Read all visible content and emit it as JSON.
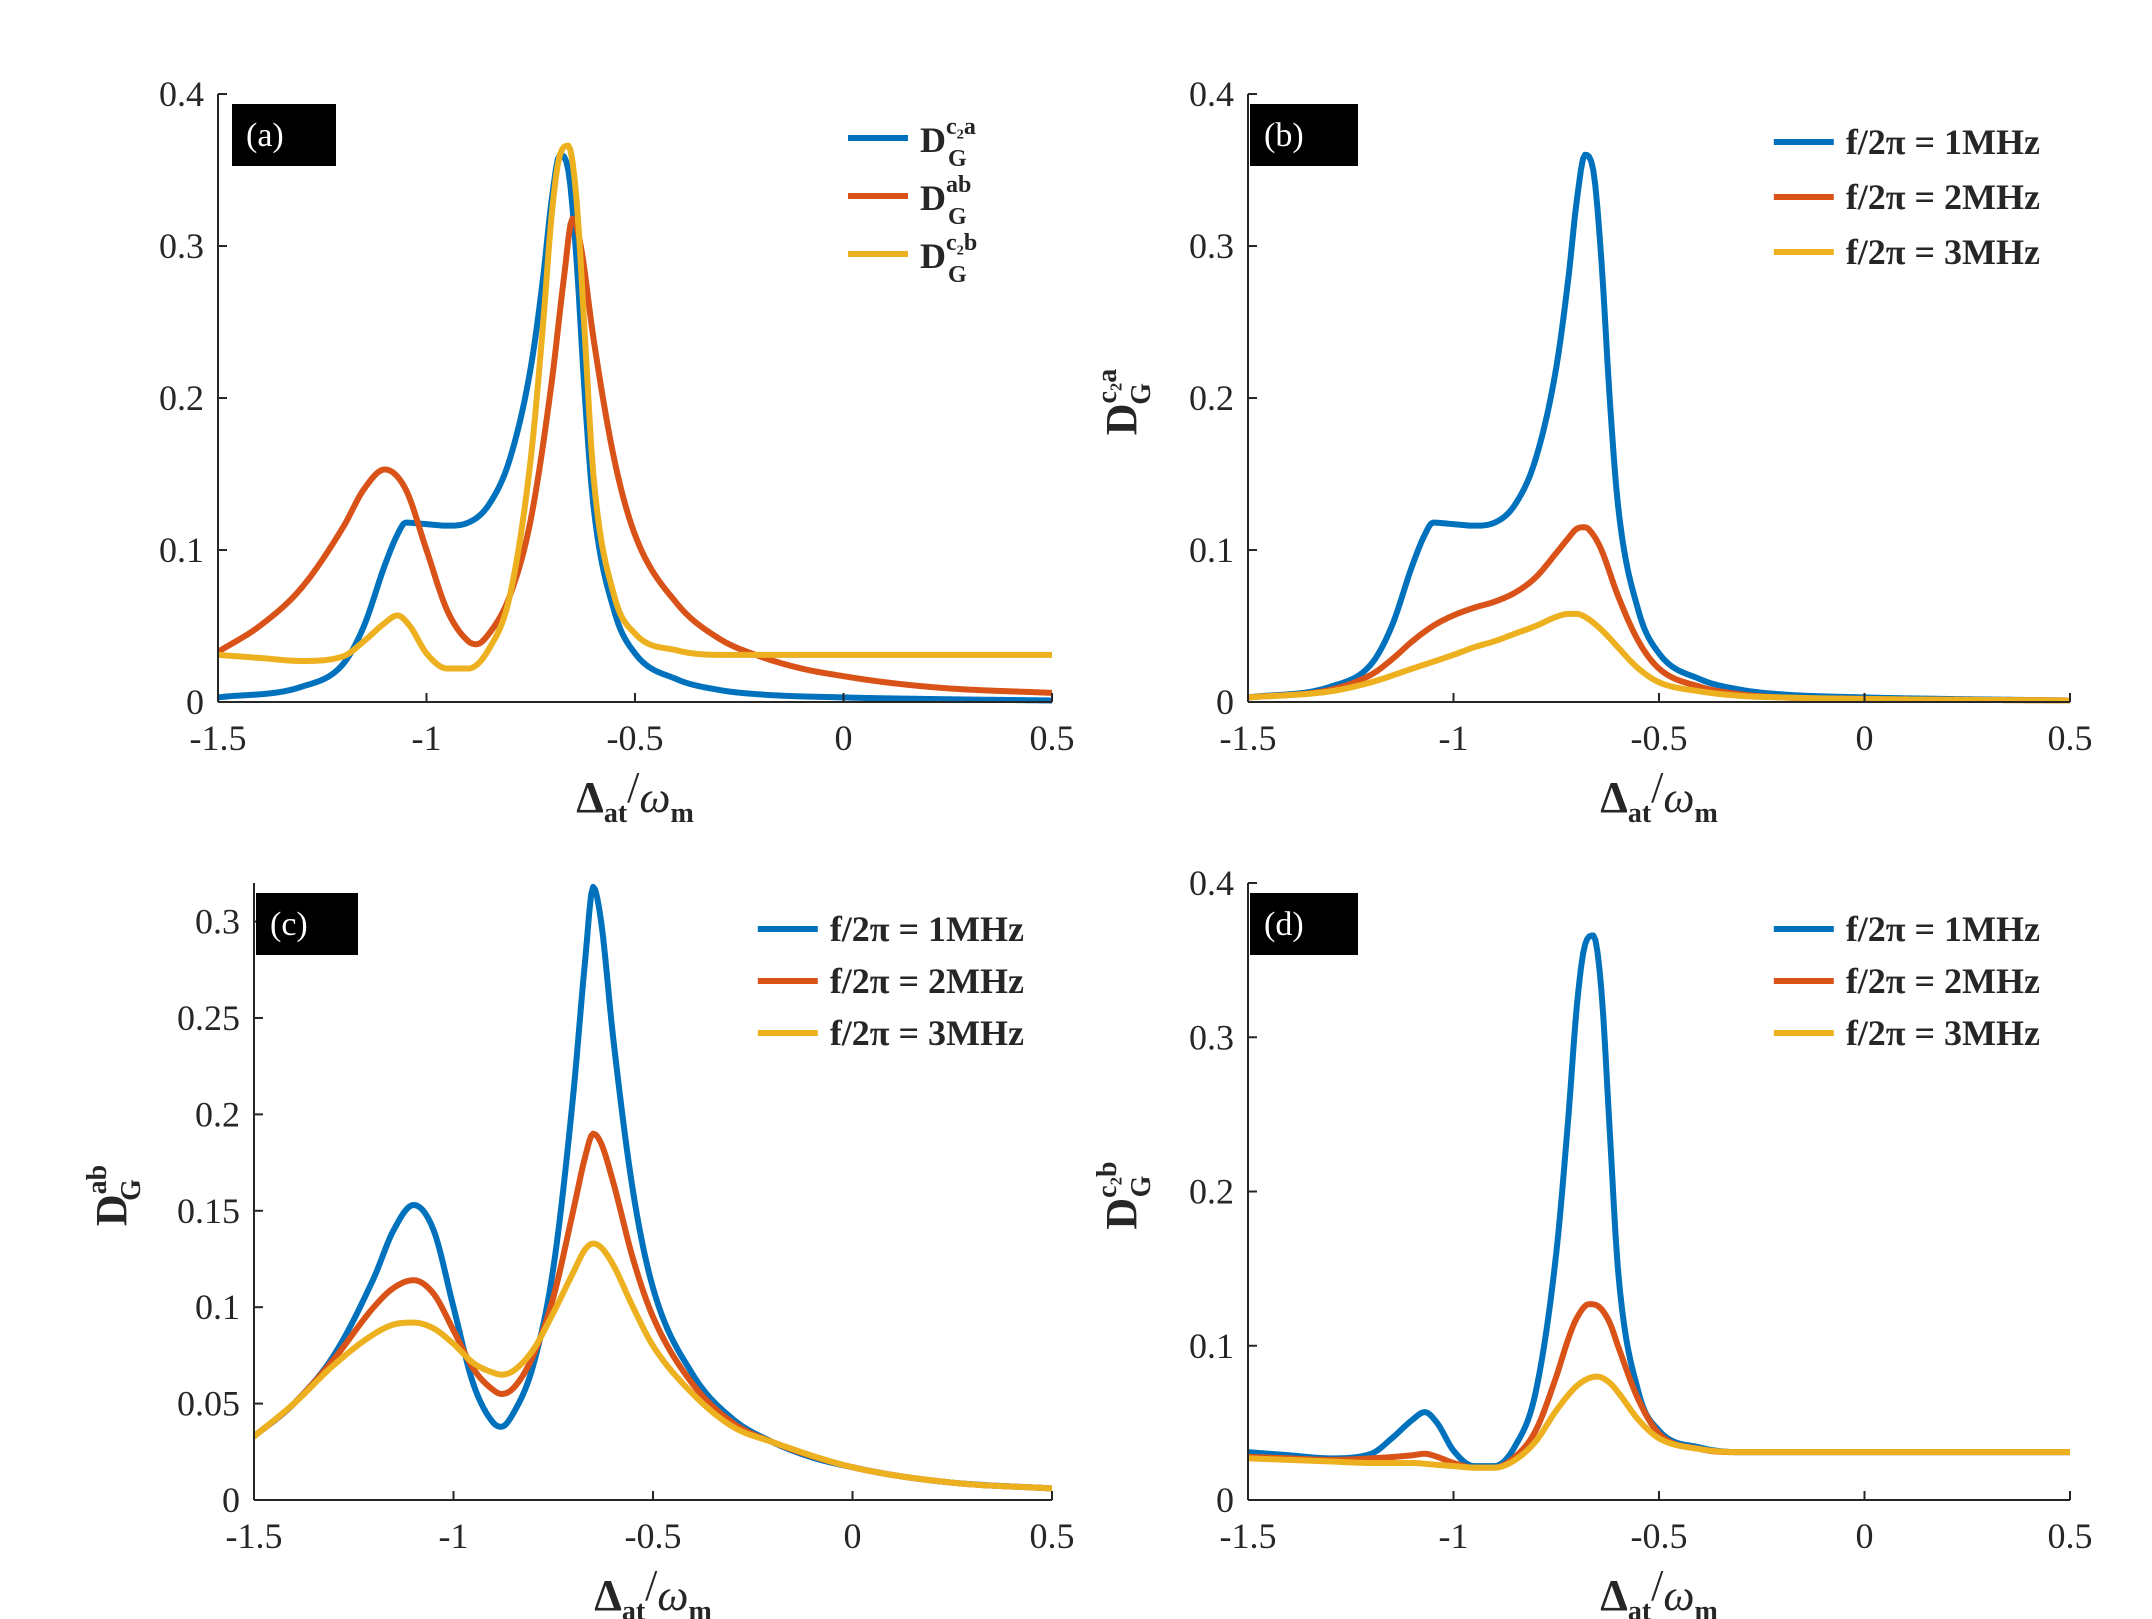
{
  "colors": {
    "blue": "#0072BD",
    "orange": "#D95319",
    "yellow": "#EDB120"
  },
  "chart_data": [
    {
      "panel": "(a)",
      "type": "line",
      "xlabel": {
        "main": "Δ",
        "sub": "at",
        "slash": "/",
        "omega": "ω",
        "omega_sub": "m"
      },
      "ylabel": null,
      "xlim": [
        -1.5,
        0.5
      ],
      "ylim": [
        0,
        0.4
      ],
      "xticks": [
        -1.5,
        -1,
        -0.5,
        0,
        0.5
      ],
      "xtick_labels": [
        "-1.5",
        "-1",
        "-0.5",
        "0",
        "0.5"
      ],
      "yticks": [
        0,
        0.1,
        0.2,
        0.3,
        0.4
      ],
      "ytick_labels": [
        "0",
        "0.1",
        "0.2",
        "0.3",
        "0.4"
      ],
      "legend_position": "top-right",
      "series": [
        {
          "name": "D_G^{c2a}",
          "legend": {
            "main": "D",
            "sub": "G",
            "sup": "c₂a"
          },
          "color": "#0072BD",
          "x": [
            -1.5,
            -1.3,
            -1.2,
            -1.15,
            -1.1,
            -1.07,
            -1.05,
            -1.0,
            -0.95,
            -0.9,
            -0.85,
            -0.8,
            -0.75,
            -0.72,
            -0.7,
            -0.68,
            -0.66,
            -0.64,
            -0.62,
            -0.6,
            -0.55,
            -0.5,
            -0.4,
            -0.3,
            -0.2,
            0,
            0.2,
            0.5
          ],
          "y": [
            0.003,
            0.01,
            0.025,
            0.05,
            0.09,
            0.11,
            0.118,
            0.117,
            0.116,
            0.118,
            0.13,
            0.16,
            0.22,
            0.28,
            0.33,
            0.36,
            0.35,
            0.29,
            0.2,
            0.13,
            0.06,
            0.032,
            0.015,
            0.008,
            0.005,
            0.003,
            0.002,
            0.001
          ]
        },
        {
          "name": "D_G^{ab}",
          "legend": {
            "main": "D",
            "sub": "G",
            "sup": "ab"
          },
          "color": "#D95319",
          "x": [
            -1.5,
            -1.4,
            -1.3,
            -1.2,
            -1.15,
            -1.1,
            -1.05,
            -1.0,
            -0.95,
            -0.9,
            -0.88,
            -0.85,
            -0.8,
            -0.75,
            -0.7,
            -0.67,
            -0.65,
            -0.63,
            -0.6,
            -0.55,
            -0.5,
            -0.4,
            -0.3,
            -0.2,
            -0.1,
            0,
            0.1,
            0.25,
            0.5
          ],
          "y": [
            0.033,
            0.05,
            0.075,
            0.115,
            0.14,
            0.153,
            0.14,
            0.1,
            0.06,
            0.04,
            0.038,
            0.045,
            0.07,
            0.12,
            0.21,
            0.28,
            0.318,
            0.3,
            0.24,
            0.16,
            0.11,
            0.065,
            0.042,
            0.03,
            0.022,
            0.017,
            0.013,
            0.009,
            0.006
          ]
        },
        {
          "name": "D_G^{c2b}",
          "legend": {
            "main": "D",
            "sub": "G",
            "sup": "c₂b"
          },
          "color": "#EDB120",
          "x": [
            -1.5,
            -1.4,
            -1.3,
            -1.2,
            -1.15,
            -1.1,
            -1.07,
            -1.04,
            -1.0,
            -0.95,
            -0.9,
            -0.85,
            -0.8,
            -0.75,
            -0.72,
            -0.7,
            -0.68,
            -0.66,
            -0.64,
            -0.62,
            -0.6,
            -0.55,
            -0.5,
            -0.4,
            -0.3,
            0,
            0.5
          ],
          "y": [
            0.031,
            0.029,
            0.027,
            0.03,
            0.04,
            0.052,
            0.057,
            0.05,
            0.032,
            0.022,
            0.022,
            0.035,
            0.07,
            0.16,
            0.25,
            0.32,
            0.36,
            0.366,
            0.33,
            0.24,
            0.15,
            0.07,
            0.045,
            0.034,
            0.031,
            0.031,
            0.031
          ]
        }
      ]
    },
    {
      "panel": "(b)",
      "type": "line",
      "xlabel": {
        "main": "Δ",
        "sub": "at",
        "slash": "/",
        "omega": "ω",
        "omega_sub": "m"
      },
      "ylabel": {
        "main": "D",
        "sub": "G",
        "sup": "c₂a"
      },
      "xlim": [
        -1.5,
        0.5
      ],
      "ylim": [
        0,
        0.4
      ],
      "xticks": [
        -1.5,
        -1,
        -0.5,
        0,
        0.5
      ],
      "xtick_labels": [
        "-1.5",
        "-1",
        "-0.5",
        "0",
        "0.5"
      ],
      "yticks": [
        0,
        0.1,
        0.2,
        0.3,
        0.4
      ],
      "ytick_labels": [
        "0",
        "0.1",
        "0.2",
        "0.3",
        "0.4"
      ],
      "legend_position": "top-right",
      "series": [
        {
          "name": "f/2π = 1MHz",
          "legend": {
            "text": "f/2π = 1MHz"
          },
          "color": "#0072BD",
          "x": [
            -1.5,
            -1.3,
            -1.2,
            -1.15,
            -1.1,
            -1.07,
            -1.05,
            -1.0,
            -0.95,
            -0.9,
            -0.85,
            -0.8,
            -0.75,
            -0.72,
            -0.7,
            -0.68,
            -0.66,
            -0.64,
            -0.62,
            -0.6,
            -0.55,
            -0.5,
            -0.4,
            -0.3,
            -0.2,
            0,
            0.2,
            0.5
          ],
          "y": [
            0.003,
            0.01,
            0.025,
            0.05,
            0.09,
            0.11,
            0.118,
            0.117,
            0.116,
            0.118,
            0.13,
            0.16,
            0.22,
            0.28,
            0.33,
            0.36,
            0.35,
            0.29,
            0.2,
            0.13,
            0.06,
            0.032,
            0.015,
            0.008,
            0.005,
            0.003,
            0.002,
            0.001
          ]
        },
        {
          "name": "f/2π = 2MHz",
          "legend": {
            "text": "f/2π = 2MHz"
          },
          "color": "#D95319",
          "x": [
            -1.5,
            -1.3,
            -1.2,
            -1.15,
            -1.1,
            -1.05,
            -1.0,
            -0.95,
            -0.9,
            -0.85,
            -0.8,
            -0.75,
            -0.72,
            -0.7,
            -0.68,
            -0.66,
            -0.64,
            -0.6,
            -0.55,
            -0.5,
            -0.4,
            -0.3,
            -0.2,
            0,
            0.5
          ],
          "y": [
            0.003,
            0.008,
            0.018,
            0.028,
            0.04,
            0.05,
            0.057,
            0.062,
            0.066,
            0.072,
            0.082,
            0.098,
            0.108,
            0.114,
            0.115,
            0.11,
            0.1,
            0.07,
            0.04,
            0.022,
            0.01,
            0.005,
            0.003,
            0.002,
            0.001
          ]
        },
        {
          "name": "f/2π = 3MHz",
          "legend": {
            "text": "f/2π = 3MHz"
          },
          "color": "#EDB120",
          "x": [
            -1.5,
            -1.3,
            -1.2,
            -1.1,
            -1.0,
            -0.95,
            -0.9,
            -0.85,
            -0.8,
            -0.75,
            -0.72,
            -0.7,
            -0.68,
            -0.65,
            -0.62,
            -0.6,
            -0.55,
            -0.5,
            -0.4,
            -0.3,
            -0.2,
            0,
            0.5
          ],
          "y": [
            0.003,
            0.007,
            0.013,
            0.022,
            0.031,
            0.036,
            0.04,
            0.045,
            0.05,
            0.056,
            0.058,
            0.058,
            0.056,
            0.05,
            0.042,
            0.036,
            0.022,
            0.013,
            0.007,
            0.004,
            0.003,
            0.002,
            0.001
          ]
        }
      ]
    },
    {
      "panel": "(c)",
      "type": "line",
      "xlabel": {
        "main": "Δ",
        "sub": "at",
        "slash": "/",
        "omega": "ω",
        "omega_sub": "m"
      },
      "ylabel": {
        "main": "D",
        "sub": "G",
        "sup": "ab"
      },
      "xlim": [
        -1.5,
        0.5
      ],
      "ylim": [
        0,
        0.32
      ],
      "xticks": [
        -1.5,
        -1,
        -0.5,
        0,
        0.5
      ],
      "xtick_labels": [
        "-1.5",
        "-1",
        "-0.5",
        "0",
        "0.5"
      ],
      "yticks": [
        0,
        0.05,
        0.1,
        0.15,
        0.2,
        0.25,
        0.3
      ],
      "ytick_labels": [
        "0",
        "0.05",
        "0.1",
        "0.15",
        "0.2",
        "0.25",
        "0.3"
      ],
      "legend_position": "top-right",
      "series": [
        {
          "name": "f/2π = 1MHz",
          "legend": {
            "text": "f/2π = 1MHz"
          },
          "color": "#0072BD",
          "x": [
            -1.5,
            -1.4,
            -1.3,
            -1.2,
            -1.15,
            -1.1,
            -1.05,
            -1.0,
            -0.95,
            -0.9,
            -0.88,
            -0.85,
            -0.8,
            -0.75,
            -0.7,
            -0.67,
            -0.65,
            -0.63,
            -0.6,
            -0.55,
            -0.5,
            -0.4,
            -0.3,
            -0.2,
            -0.1,
            0,
            0.1,
            0.25,
            0.5
          ],
          "y": [
            0.033,
            0.05,
            0.075,
            0.115,
            0.14,
            0.153,
            0.14,
            0.1,
            0.06,
            0.04,
            0.038,
            0.045,
            0.07,
            0.12,
            0.21,
            0.28,
            0.318,
            0.3,
            0.24,
            0.16,
            0.11,
            0.065,
            0.042,
            0.03,
            0.022,
            0.017,
            0.013,
            0.009,
            0.006
          ]
        },
        {
          "name": "f/2π = 2MHz",
          "legend": {
            "text": "f/2π = 2MHz"
          },
          "color": "#D95319",
          "x": [
            -1.5,
            -1.4,
            -1.3,
            -1.2,
            -1.15,
            -1.1,
            -1.05,
            -1.0,
            -0.95,
            -0.9,
            -0.88,
            -0.85,
            -0.8,
            -0.75,
            -0.7,
            -0.67,
            -0.65,
            -0.63,
            -0.6,
            -0.55,
            -0.5,
            -0.4,
            -0.3,
            -0.2,
            0,
            0.25,
            0.5
          ],
          "y": [
            0.033,
            0.05,
            0.073,
            0.1,
            0.11,
            0.114,
            0.107,
            0.088,
            0.068,
            0.057,
            0.055,
            0.058,
            0.075,
            0.105,
            0.15,
            0.178,
            0.19,
            0.185,
            0.165,
            0.125,
            0.095,
            0.06,
            0.04,
            0.03,
            0.017,
            0.009,
            0.006
          ]
        },
        {
          "name": "f/2π = 3MHz",
          "legend": {
            "text": "f/2π = 3MHz"
          },
          "color": "#EDB120",
          "x": [
            -1.5,
            -1.4,
            -1.3,
            -1.2,
            -1.15,
            -1.1,
            -1.05,
            -1.0,
            -0.95,
            -0.9,
            -0.88,
            -0.85,
            -0.8,
            -0.75,
            -0.7,
            -0.67,
            -0.65,
            -0.63,
            -0.6,
            -0.55,
            -0.5,
            -0.4,
            -0.3,
            -0.2,
            0,
            0.25,
            0.5
          ],
          "y": [
            0.033,
            0.05,
            0.07,
            0.086,
            0.091,
            0.092,
            0.089,
            0.081,
            0.071,
            0.066,
            0.065,
            0.067,
            0.078,
            0.097,
            0.118,
            0.13,
            0.133,
            0.131,
            0.122,
            0.1,
            0.08,
            0.055,
            0.038,
            0.03,
            0.017,
            0.009,
            0.006
          ]
        }
      ]
    },
    {
      "panel": "(d)",
      "type": "line",
      "xlabel": {
        "main": "Δ",
        "sub": "at",
        "slash": "/",
        "omega": "ω",
        "omega_sub": "m"
      },
      "ylabel": {
        "main": "D",
        "sub": "G",
        "sup": "c₂b"
      },
      "xlim": [
        -1.5,
        0.5
      ],
      "ylim": [
        0,
        0.4
      ],
      "xticks": [
        -1.5,
        -1,
        -0.5,
        0,
        0.5
      ],
      "xtick_labels": [
        "-1.5",
        "-1",
        "-0.5",
        "0",
        "0.5"
      ],
      "yticks": [
        0,
        0.1,
        0.2,
        0.3,
        0.4
      ],
      "ytick_labels": [
        "0",
        "0.1",
        "0.2",
        "0.3",
        "0.4"
      ],
      "legend_position": "top-right",
      "series": [
        {
          "name": "f/2π = 1MHz",
          "legend": {
            "text": "f/2π = 1MHz"
          },
          "color": "#0072BD",
          "x": [
            -1.5,
            -1.4,
            -1.3,
            -1.2,
            -1.15,
            -1.1,
            -1.07,
            -1.04,
            -1.0,
            -0.95,
            -0.9,
            -0.85,
            -0.8,
            -0.75,
            -0.72,
            -0.7,
            -0.68,
            -0.66,
            -0.64,
            -0.62,
            -0.6,
            -0.55,
            -0.5,
            -0.4,
            -0.3,
            0,
            0.5
          ],
          "y": [
            0.031,
            0.029,
            0.027,
            0.03,
            0.04,
            0.052,
            0.057,
            0.05,
            0.032,
            0.022,
            0.022,
            0.035,
            0.07,
            0.16,
            0.25,
            0.32,
            0.36,
            0.366,
            0.33,
            0.24,
            0.15,
            0.07,
            0.045,
            0.034,
            0.031,
            0.031,
            0.031
          ]
        },
        {
          "name": "f/2π = 2MHz",
          "legend": {
            "text": "f/2π = 2MHz"
          },
          "color": "#D95319",
          "x": [
            -1.5,
            -1.4,
            -1.3,
            -1.2,
            -1.1,
            -1.07,
            -1.04,
            -1.0,
            -0.95,
            -0.9,
            -0.85,
            -0.8,
            -0.75,
            -0.72,
            -0.7,
            -0.67,
            -0.65,
            -0.62,
            -0.6,
            -0.55,
            -0.5,
            -0.4,
            -0.3,
            0,
            0.5
          ],
          "y": [
            0.028,
            0.027,
            0.026,
            0.027,
            0.029,
            0.03,
            0.028,
            0.024,
            0.021,
            0.021,
            0.028,
            0.045,
            0.08,
            0.105,
            0.118,
            0.127,
            0.126,
            0.115,
            0.1,
            0.065,
            0.043,
            0.033,
            0.031,
            0.031,
            0.031
          ]
        },
        {
          "name": "f/2π = 3MHz",
          "legend": {
            "text": "f/2π = 3MHz"
          },
          "color": "#EDB120",
          "x": [
            -1.5,
            -1.4,
            -1.3,
            -1.2,
            -1.1,
            -1.05,
            -1.0,
            -0.95,
            -0.9,
            -0.85,
            -0.8,
            -0.75,
            -0.7,
            -0.67,
            -0.65,
            -0.62,
            -0.6,
            -0.55,
            -0.5,
            -0.4,
            -0.3,
            0,
            0.5
          ],
          "y": [
            0.027,
            0.026,
            0.025,
            0.024,
            0.024,
            0.023,
            0.022,
            0.021,
            0.021,
            0.026,
            0.038,
            0.058,
            0.074,
            0.079,
            0.08,
            0.076,
            0.07,
            0.052,
            0.04,
            0.033,
            0.031,
            0.031,
            0.031
          ]
        }
      ]
    }
  ]
}
